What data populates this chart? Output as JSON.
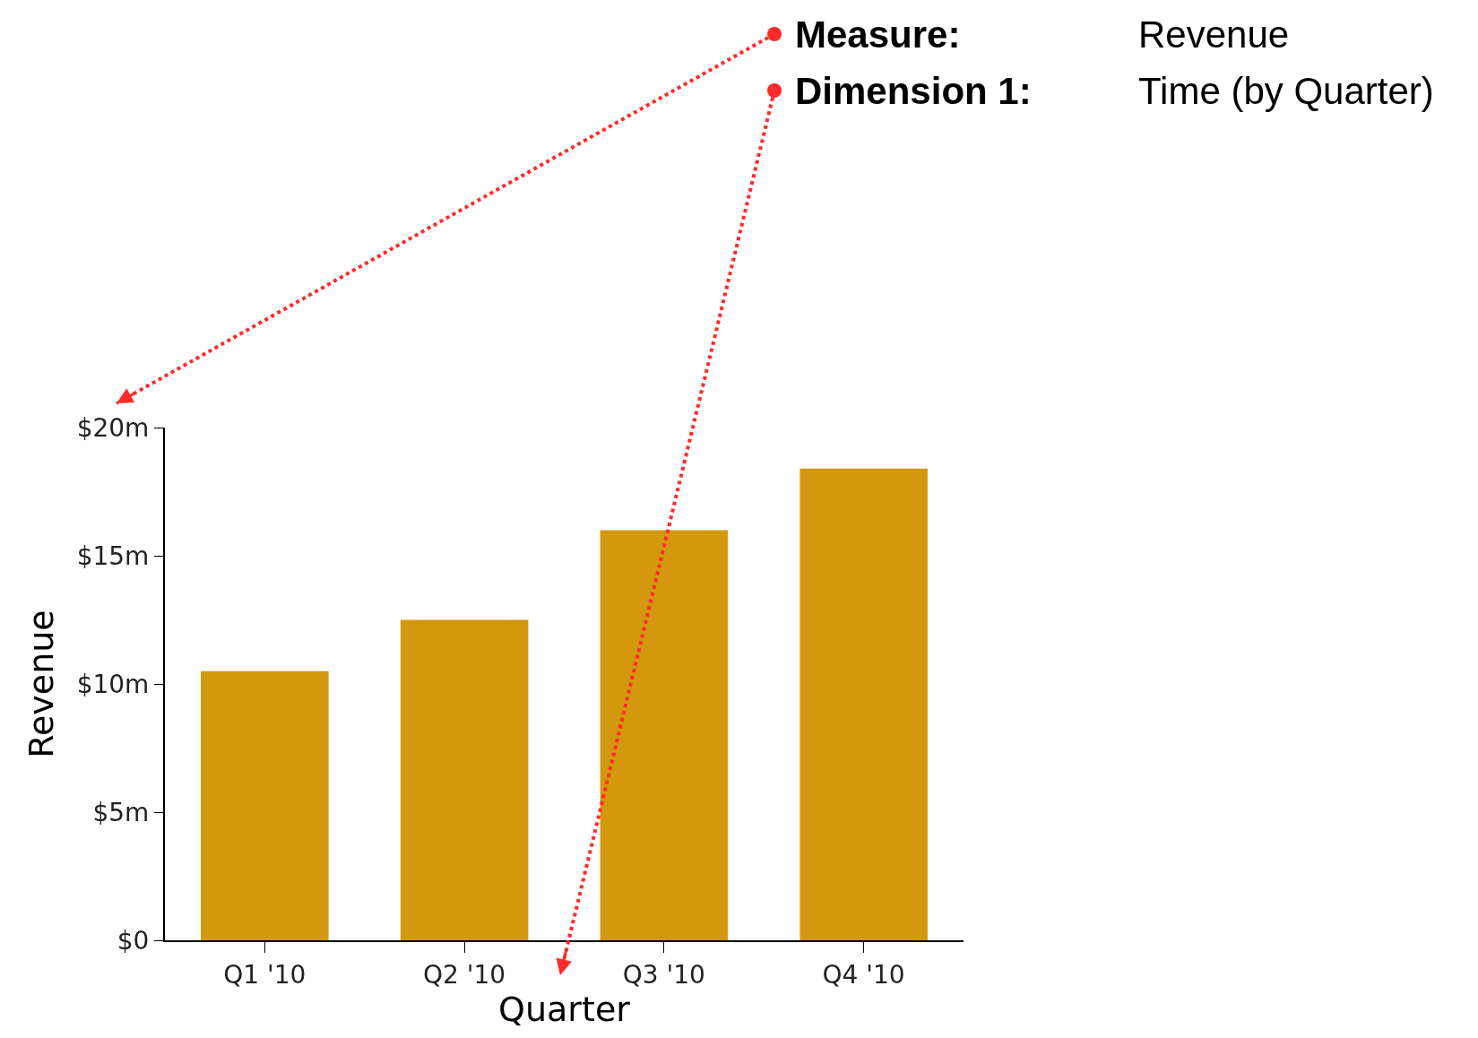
{
  "chart_data": {
    "type": "bar",
    "xlabel": "Quarter",
    "ylabel": "Revenue",
    "categories": [
      "Q1 '10",
      "Q2 '10",
      "Q3 '10",
      "Q4 '10"
    ],
    "values": [
      10.5,
      12.5,
      16,
      18.4
    ],
    "color": "#d4980f",
    "ylim": [
      0,
      20
    ],
    "yticks": [
      {
        "value": 0,
        "label": "$0"
      },
      {
        "value": 5,
        "label": "$5m"
      },
      {
        "value": 10,
        "label": "$10m"
      },
      {
        "value": 15,
        "label": "$15m"
      },
      {
        "value": 20,
        "label": "$20m"
      }
    ],
    "annotations": [
      "Measure:",
      "Revenue",
      "Dimension 1:",
      "Time (by Quarter)"
    ]
  }
}
